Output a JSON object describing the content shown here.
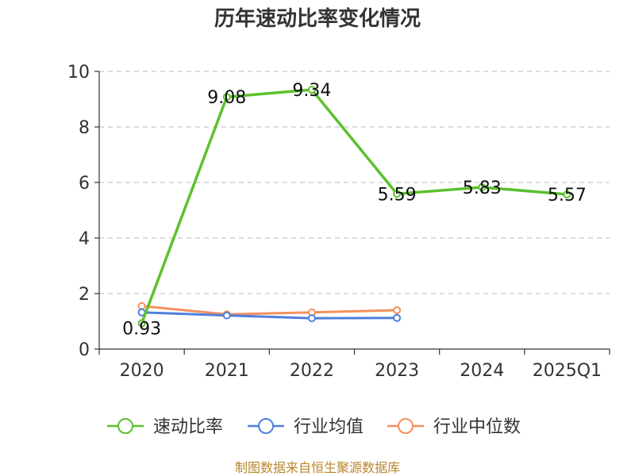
{
  "chart_data": {
    "type": "line",
    "title": "历年速动比率变化情况",
    "xlabel": "",
    "ylabel": "",
    "categories": [
      "2020",
      "2021",
      "2022",
      "2023",
      "2024",
      "2025Q1"
    ],
    "ylim": [
      0,
      10
    ],
    "yticks": [
      "0",
      "2",
      "4",
      "6",
      "8",
      "10"
    ],
    "grid": true,
    "legend_position": "bottom",
    "series": [
      {
        "name": "速动比率",
        "values": [
          0.93,
          9.08,
          9.34,
          5.59,
          5.83,
          5.57
        ],
        "labels": [
          "0.93",
          "9.08",
          "9.34",
          "5.59",
          "5.83",
          "5.57"
        ],
        "color": "#5cc12e"
      },
      {
        "name": "行业均值",
        "values": [
          1.32,
          1.21,
          1.11,
          1.12,
          null,
          null
        ],
        "color": "#4f7fdc"
      },
      {
        "name": "行业中位数",
        "values": [
          1.55,
          1.25,
          1.32,
          1.4,
          null,
          null
        ],
        "color": "#f4905e"
      }
    ]
  },
  "source_text": "制图数据来自恒生聚源数据库"
}
